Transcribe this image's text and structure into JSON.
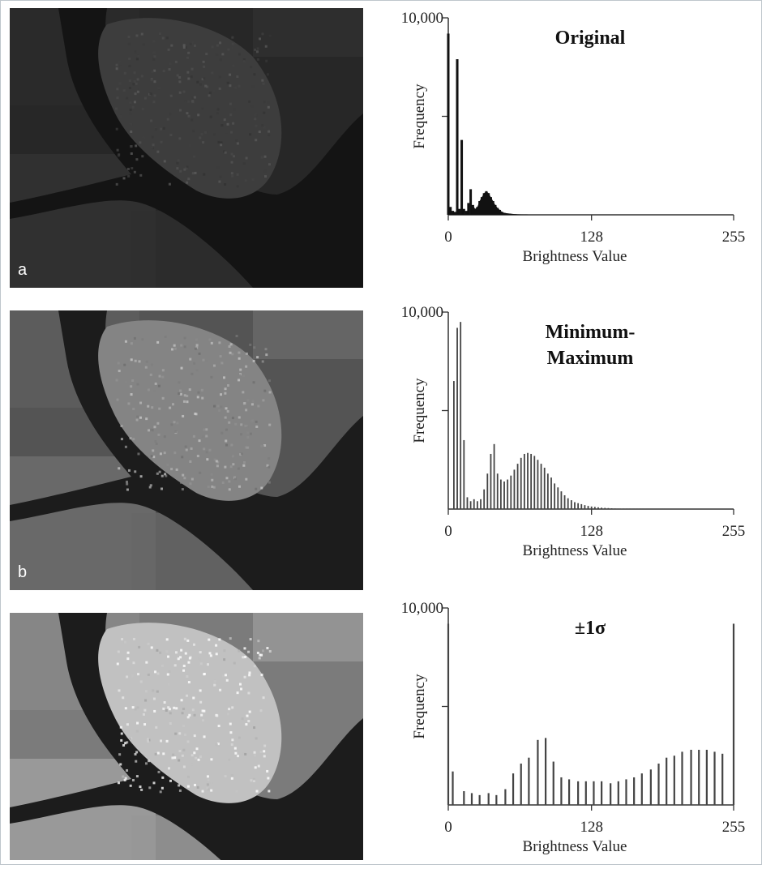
{
  "panels": [
    {
      "label": "a",
      "brightness": 0.55,
      "chart": {
        "title": "Original",
        "style": "area"
      }
    },
    {
      "label": "b",
      "brightness": 1.2,
      "chart": {
        "title": "Minimum-Maximum",
        "title_lines": [
          "Minimum-",
          "Maximum"
        ],
        "style": "bars"
      }
    },
    {
      "label": "",
      "brightness": 1.75,
      "chart": {
        "title": "±1σ",
        "style": "bars"
      }
    }
  ],
  "chart_data": [
    {
      "type": "bar",
      "title": "Original",
      "xlabel": "Brightness Value",
      "ylabel": "Frequency",
      "xlim": [
        0,
        255
      ],
      "ylim": [
        0,
        10000
      ],
      "xticks": [
        0,
        128,
        255
      ],
      "ytick_label": "10,000",
      "x": [
        0,
        2,
        4,
        6,
        8,
        10,
        12,
        14,
        16,
        18,
        20,
        22,
        24,
        26,
        28,
        30,
        32,
        34,
        36,
        38,
        40,
        42,
        44,
        46,
        48,
        50,
        55,
        60,
        70
      ],
      "values": [
        9200,
        400,
        200,
        150,
        7900,
        300,
        3800,
        300,
        200,
        600,
        1300,
        500,
        300,
        400,
        700,
        900,
        1100,
        1200,
        1100,
        900,
        700,
        500,
        350,
        250,
        150,
        100,
        60,
        30,
        10
      ]
    },
    {
      "type": "bar",
      "title": "Minimum-Maximum",
      "xlabel": "Brightness Value",
      "ylabel": "Frequency",
      "xlim": [
        0,
        255
      ],
      "ylim": [
        0,
        10000
      ],
      "xticks": [
        0,
        128,
        255
      ],
      "ytick_label": "10,000",
      "x": [
        5,
        8,
        11,
        14,
        17,
        20,
        23,
        26,
        29,
        32,
        35,
        38,
        41,
        44,
        47,
        50,
        53,
        56,
        59,
        62,
        65,
        68,
        71,
        74,
        77,
        80,
        83,
        86,
        89,
        92,
        95,
        98,
        101,
        104,
        107,
        110,
        113,
        116,
        119,
        122,
        125,
        128,
        131,
        134,
        137,
        140,
        143,
        146,
        149,
        152,
        155,
        158,
        161,
        164,
        167,
        170,
        173,
        176,
        179,
        182,
        185,
        188,
        191,
        194
      ],
      "values": [
        6500,
        9200,
        9500,
        3500,
        600,
        400,
        500,
        400,
        500,
        1000,
        1800,
        2800,
        3300,
        1800,
        1500,
        1400,
        1500,
        1700,
        2000,
        2300,
        2600,
        2800,
        2850,
        2800,
        2700,
        2500,
        2300,
        2100,
        1800,
        1600,
        1300,
        1100,
        900,
        700,
        550,
        450,
        350,
        300,
        250,
        200,
        160,
        130,
        110,
        90,
        70,
        60,
        50,
        40,
        30,
        25,
        20,
        15,
        12,
        10,
        8,
        6,
        5,
        4,
        3,
        2,
        2,
        1,
        1,
        1
      ]
    },
    {
      "type": "bar",
      "title": "±1σ",
      "xlabel": "Brightness Value",
      "ylabel": "Frequency",
      "xlim": [
        0,
        255
      ],
      "ylim": [
        0,
        10000
      ],
      "xticks": [
        0,
        128,
        255
      ],
      "ytick_label": "10,000",
      "x": [
        0,
        4,
        14,
        21,
        28,
        36,
        43,
        51,
        58,
        65,
        72,
        80,
        87,
        94,
        101,
        108,
        116,
        123,
        130,
        137,
        145,
        152,
        159,
        166,
        173,
        181,
        188,
        195,
        202,
        209,
        217,
        224,
        231,
        238,
        245,
        255
      ],
      "values": [
        9200,
        1700,
        700,
        600,
        500,
        600,
        500,
        800,
        1600,
        2100,
        2400,
        3300,
        3400,
        2200,
        1400,
        1300,
        1200,
        1200,
        1200,
        1200,
        1100,
        1200,
        1300,
        1400,
        1600,
        1800,
        2100,
        2400,
        2500,
        2700,
        2800,
        2800,
        2800,
        2700,
        2600,
        9200
      ]
    }
  ]
}
